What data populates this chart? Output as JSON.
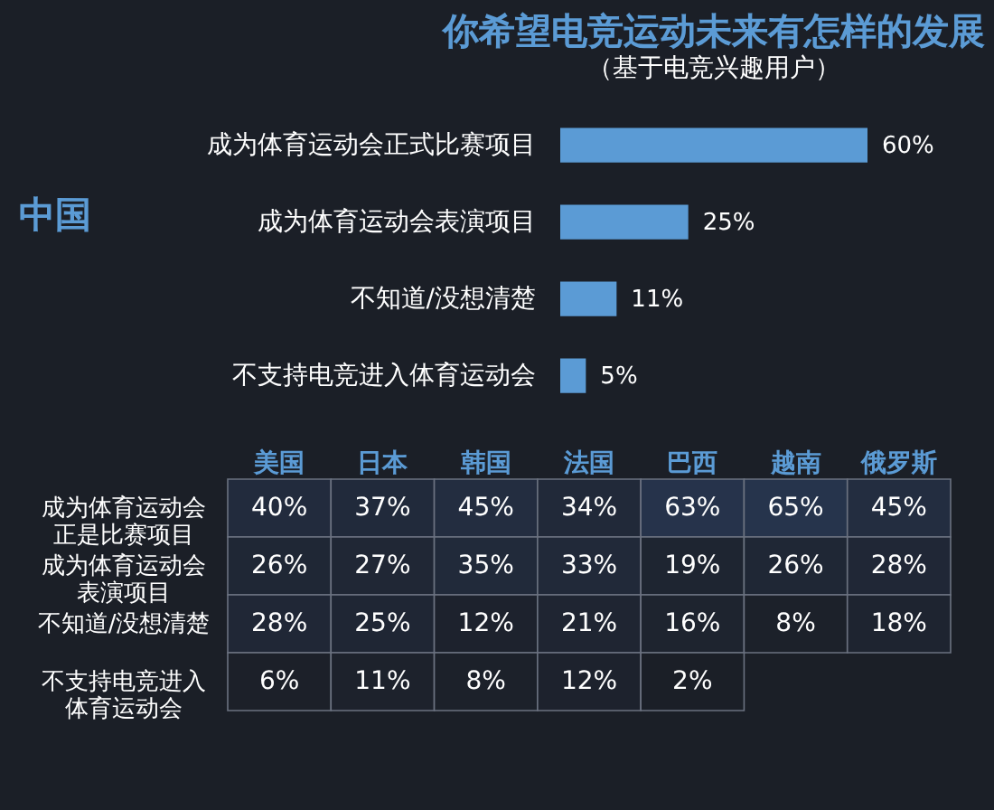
{
  "chart_data": [
    {
      "type": "bar",
      "orientation": "horizontal",
      "title": "你希望电竞运动未来有怎样的发展",
      "subtitle": "（基于电竞兴趣用户）",
      "ylabel": "中国",
      "categories": [
        "成为体育运动会正式比赛项目",
        "成为体育运动会表演项目",
        "不知道/没想清楚",
        "不支持电竞进入体育运动会"
      ],
      "values": [
        60,
        25,
        11,
        5
      ],
      "color": "#5b9bd5",
      "value_labels": [
        "60%",
        "25%",
        "11%",
        "5%"
      ]
    },
    {
      "type": "heatmap",
      "categories": [
        "美国",
        "日本",
        "韩国",
        "法国",
        "巴西",
        "越南",
        "俄罗斯"
      ],
      "y_categories": [
        "成为体育运动会正是比赛项目",
        "成为体育运动会表演项目",
        "不知道/没想清楚",
        "不支持电竞进入体育运动会"
      ],
      "cells": [
        [
          40,
          37,
          45,
          34,
          63,
          65,
          45
        ],
        [
          26,
          27,
          35,
          33,
          19,
          26,
          28
        ],
        [
          28,
          25,
          12,
          21,
          16,
          8,
          18
        ],
        [
          6,
          11,
          8,
          12,
          2,
          null,
          null
        ]
      ],
      "cell_labels": [
        [
          "40%",
          "37%",
          "45%",
          "34%",
          "63%",
          "65%",
          "45%"
        ],
        [
          "26%",
          "27%",
          "35%",
          "33%",
          "19%",
          "26%",
          "28%"
        ],
        [
          "28%",
          "25%",
          "12%",
          "21%",
          "16%",
          "8%",
          "18%"
        ],
        [
          "6%",
          "11%",
          "8%",
          "12%",
          "2%",
          null,
          null
        ]
      ]
    }
  ]
}
